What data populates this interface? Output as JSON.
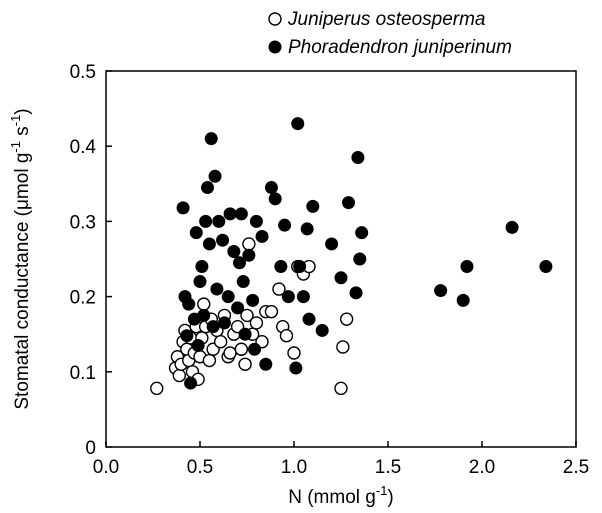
{
  "chart_data": {
    "type": "scatter",
    "xlabel_main": "N (mmol g",
    "xlabel_sup": "-1",
    "xlabel_end": ")",
    "ylabel_main": "Stomatal conductance (μmol g",
    "ylabel_sup1": "-1",
    "ylabel_mid": " s",
    "ylabel_sup2": "-1",
    "ylabel_end": ")",
    "xlim": [
      0.0,
      2.5
    ],
    "ylim": [
      0,
      0.5
    ],
    "x_ticks": [
      0.0,
      0.5,
      1.0,
      1.5,
      2.0,
      2.5
    ],
    "x_tick_labels": [
      "0.0",
      "0.5",
      "1.0",
      "1.5",
      "2.0",
      "2.5"
    ],
    "y_ticks": [
      0,
      0.1,
      0.2,
      0.3,
      0.4,
      0.5
    ],
    "y_tick_labels": [
      "0",
      "0.1",
      "0.2",
      "0.3",
      "0.4",
      "0.5"
    ],
    "grid": false,
    "legend_position": "top-right",
    "series": [
      {
        "name": "Juniperus osteosperma",
        "marker": "open-circle",
        "color": "#000000",
        "points": [
          [
            0.27,
            0.078
          ],
          [
            0.37,
            0.105
          ],
          [
            0.38,
            0.12
          ],
          [
            0.39,
            0.095
          ],
          [
            0.4,
            0.11
          ],
          [
            0.41,
            0.14
          ],
          [
            0.42,
            0.155
          ],
          [
            0.43,
            0.13
          ],
          [
            0.44,
            0.115
          ],
          [
            0.45,
            0.145
          ],
          [
            0.46,
            0.1
          ],
          [
            0.47,
            0.125
          ],
          [
            0.48,
            0.16
          ],
          [
            0.49,
            0.09
          ],
          [
            0.5,
            0.12
          ],
          [
            0.51,
            0.145
          ],
          [
            0.52,
            0.19
          ],
          [
            0.53,
            0.16
          ],
          [
            0.55,
            0.115
          ],
          [
            0.56,
            0.17
          ],
          [
            0.57,
            0.13
          ],
          [
            0.59,
            0.155
          ],
          [
            0.61,
            0.14
          ],
          [
            0.63,
            0.175
          ],
          [
            0.65,
            0.12
          ],
          [
            0.66,
            0.125
          ],
          [
            0.68,
            0.15
          ],
          [
            0.7,
            0.16
          ],
          [
            0.72,
            0.13
          ],
          [
            0.74,
            0.11
          ],
          [
            0.75,
            0.175
          ],
          [
            0.76,
            0.27
          ],
          [
            0.78,
            0.15
          ],
          [
            0.8,
            0.165
          ],
          [
            0.83,
            0.14
          ],
          [
            0.85,
            0.18
          ],
          [
            0.88,
            0.18
          ],
          [
            0.92,
            0.21
          ],
          [
            0.94,
            0.16
          ],
          [
            0.96,
            0.148
          ],
          [
            1.0,
            0.125
          ],
          [
            1.02,
            0.24
          ],
          [
            1.05,
            0.23
          ],
          [
            1.08,
            0.24
          ],
          [
            1.25,
            0.078
          ],
          [
            1.26,
            0.133
          ],
          [
            1.28,
            0.17
          ]
        ]
      },
      {
        "name": "Phoradendron juniperinum",
        "marker": "filled-circle",
        "color": "#000000",
        "points": [
          [
            0.41,
            0.318
          ],
          [
            0.42,
            0.2
          ],
          [
            0.43,
            0.148
          ],
          [
            0.44,
            0.19
          ],
          [
            0.45,
            0.085
          ],
          [
            0.47,
            0.17
          ],
          [
            0.48,
            0.285
          ],
          [
            0.49,
            0.135
          ],
          [
            0.5,
            0.22
          ],
          [
            0.51,
            0.24
          ],
          [
            0.52,
            0.175
          ],
          [
            0.53,
            0.3
          ],
          [
            0.54,
            0.345
          ],
          [
            0.55,
            0.27
          ],
          [
            0.56,
            0.41
          ],
          [
            0.57,
            0.16
          ],
          [
            0.58,
            0.36
          ],
          [
            0.59,
            0.21
          ],
          [
            0.6,
            0.3
          ],
          [
            0.62,
            0.275
          ],
          [
            0.63,
            0.165
          ],
          [
            0.65,
            0.2
          ],
          [
            0.66,
            0.31
          ],
          [
            0.68,
            0.26
          ],
          [
            0.7,
            0.185
          ],
          [
            0.71,
            0.245
          ],
          [
            0.72,
            0.31
          ],
          [
            0.73,
            0.22
          ],
          [
            0.74,
            0.15
          ],
          [
            0.76,
            0.255
          ],
          [
            0.78,
            0.195
          ],
          [
            0.79,
            0.13
          ],
          [
            0.8,
            0.3
          ],
          [
            0.83,
            0.28
          ],
          [
            0.85,
            0.11
          ],
          [
            0.88,
            0.345
          ],
          [
            0.9,
            0.33
          ],
          [
            0.93,
            0.24
          ],
          [
            0.95,
            0.295
          ],
          [
            0.97,
            0.2
          ],
          [
            1.01,
            0.105
          ],
          [
            1.02,
            0.43
          ],
          [
            1.03,
            0.24
          ],
          [
            1.05,
            0.2
          ],
          [
            1.07,
            0.29
          ],
          [
            1.08,
            0.17
          ],
          [
            1.1,
            0.32
          ],
          [
            1.15,
            0.155
          ],
          [
            1.2,
            0.27
          ],
          [
            1.25,
            0.225
          ],
          [
            1.29,
            0.325
          ],
          [
            1.33,
            0.205
          ],
          [
            1.34,
            0.385
          ],
          [
            1.35,
            0.25
          ],
          [
            1.36,
            0.285
          ],
          [
            1.78,
            0.208
          ],
          [
            1.9,
            0.195
          ],
          [
            1.92,
            0.24
          ],
          [
            2.16,
            0.292
          ],
          [
            2.34,
            0.24
          ]
        ]
      }
    ]
  }
}
